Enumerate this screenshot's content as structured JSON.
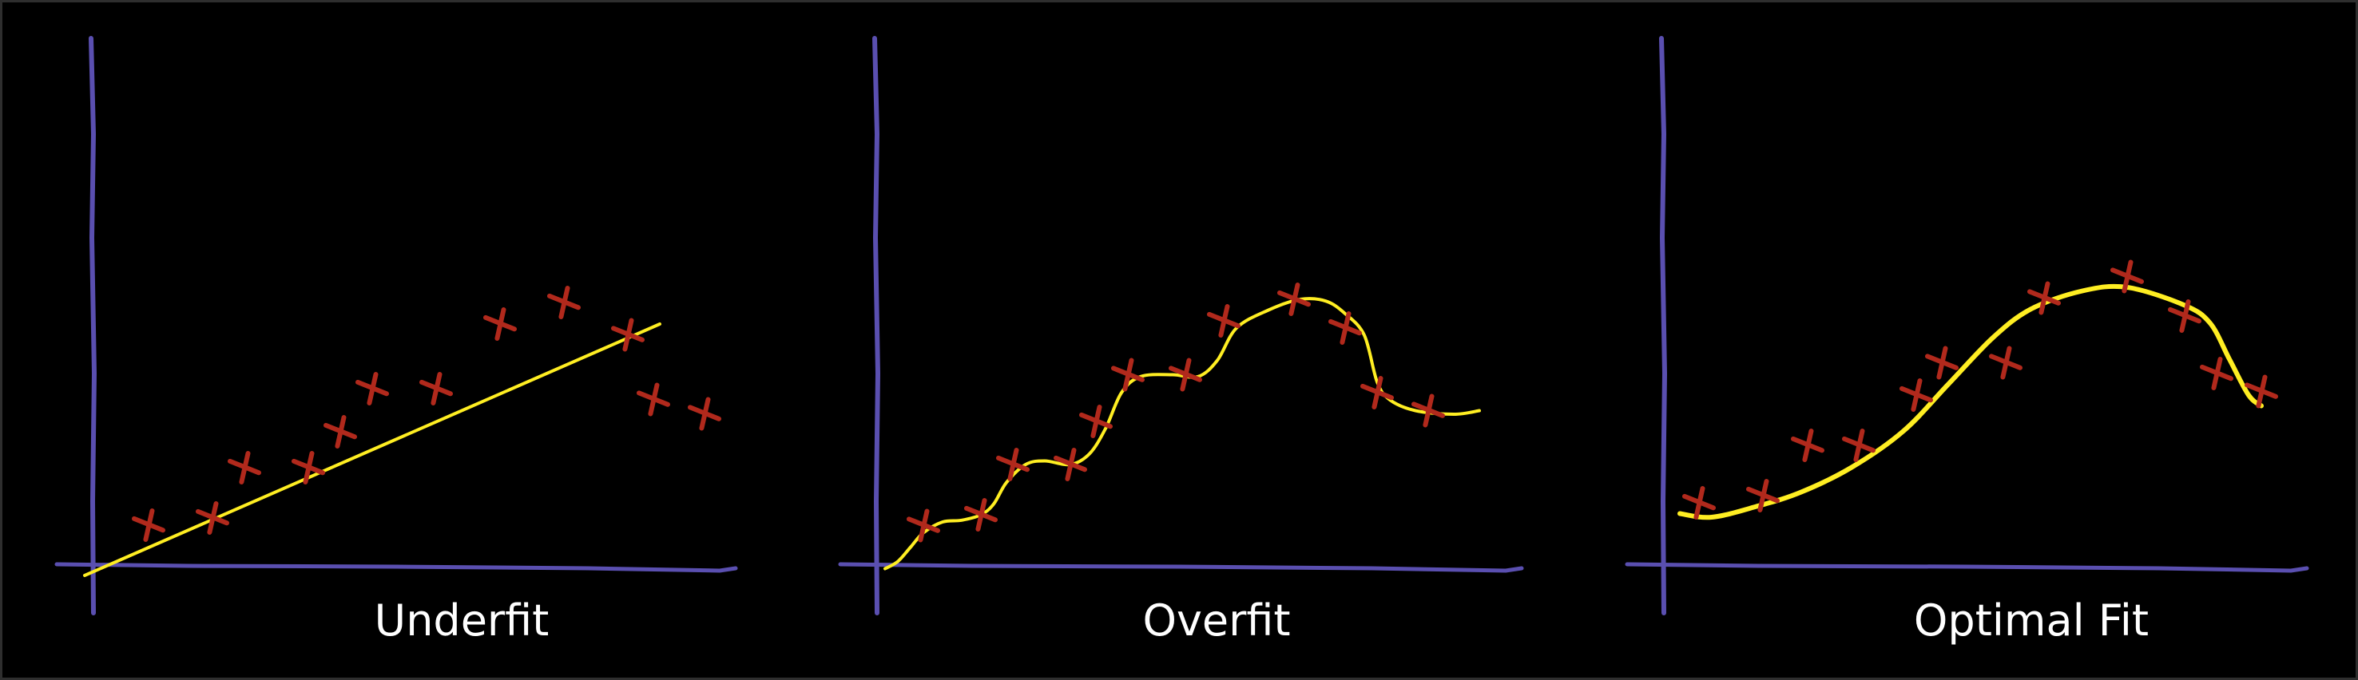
{
  "colors": {
    "background": "#000000",
    "axis": "#5a4fb0",
    "points": "#b1291c",
    "fit_curve": "#ffee22"
  },
  "panels": [
    {
      "label": "Underfit",
      "fit_style": "straight-line",
      "points": [
        [
          1.0,
          1.4
        ],
        [
          2.0,
          1.6
        ],
        [
          2.5,
          3.0
        ],
        [
          3.5,
          3.0
        ],
        [
          4.0,
          4.0
        ],
        [
          4.5,
          5.2
        ],
        [
          5.5,
          5.2
        ],
        [
          6.5,
          7.0
        ],
        [
          7.5,
          7.6
        ],
        [
          8.5,
          6.7
        ],
        [
          8.9,
          4.9
        ],
        [
          9.7,
          4.5
        ]
      ],
      "fit": [
        [
          0.0,
          0.0
        ],
        [
          9.0,
          7.0
        ]
      ]
    },
    {
      "label": "Overfit",
      "fit_style": "wiggly-interpolation",
      "points": [
        [
          0.9,
          1.3
        ],
        [
          1.8,
          1.6
        ],
        [
          2.3,
          3.0
        ],
        [
          3.2,
          3.0
        ],
        [
          3.6,
          4.2
        ],
        [
          4.1,
          5.5
        ],
        [
          5.0,
          5.5
        ],
        [
          5.6,
          7.0
        ],
        [
          6.7,
          7.6
        ],
        [
          7.5,
          6.8
        ],
        [
          8.0,
          5.0
        ],
        [
          8.8,
          4.5
        ]
      ],
      "fit": [
        [
          0.3,
          0.1
        ],
        [
          0.5,
          0.3
        ],
        [
          0.7,
          0.7
        ],
        [
          0.9,
          1.1
        ],
        [
          1.2,
          1.4
        ],
        [
          1.5,
          1.45
        ],
        [
          1.8,
          1.6
        ],
        [
          2.0,
          1.9
        ],
        [
          2.2,
          2.5
        ],
        [
          2.5,
          3.0
        ],
        [
          2.8,
          3.1
        ],
        [
          3.2,
          3.0
        ],
        [
          3.5,
          3.3
        ],
        [
          3.75,
          4.0
        ],
        [
          4.0,
          5.0
        ],
        [
          4.3,
          5.45
        ],
        [
          4.8,
          5.5
        ],
        [
          5.2,
          5.45
        ],
        [
          5.5,
          5.9
        ],
        [
          5.8,
          6.8
        ],
        [
          6.3,
          7.3
        ],
        [
          6.8,
          7.6
        ],
        [
          7.2,
          7.55
        ],
        [
          7.5,
          7.2
        ],
        [
          7.8,
          6.6
        ],
        [
          8.0,
          5.3
        ],
        [
          8.2,
          4.8
        ],
        [
          8.6,
          4.5
        ],
        [
          9.2,
          4.4
        ],
        [
          9.6,
          4.5
        ]
      ]
    },
    {
      "label": "Optimal Fit",
      "fit_style": "smooth-curve",
      "points": [
        [
          0.6,
          1.4
        ],
        [
          1.6,
          1.6
        ],
        [
          2.3,
          3.0
        ],
        [
          3.1,
          3.0
        ],
        [
          4.0,
          4.4
        ],
        [
          4.4,
          5.3
        ],
        [
          5.4,
          5.3
        ],
        [
          6.0,
          7.1
        ],
        [
          7.3,
          7.7
        ],
        [
          8.2,
          6.6
        ],
        [
          8.7,
          5.0
        ],
        [
          9.4,
          4.5
        ]
      ],
      "fit": [
        [
          0.3,
          1.1
        ],
        [
          0.8,
          1.0
        ],
        [
          1.5,
          1.3
        ],
        [
          2.2,
          1.7
        ],
        [
          3.0,
          2.4
        ],
        [
          3.8,
          3.4
        ],
        [
          4.5,
          4.7
        ],
        [
          5.2,
          6.0
        ],
        [
          5.8,
          6.8
        ],
        [
          6.6,
          7.3
        ],
        [
          7.3,
          7.4
        ],
        [
          8.2,
          6.9
        ],
        [
          8.6,
          6.4
        ],
        [
          8.9,
          5.4
        ],
        [
          9.2,
          4.4
        ],
        [
          9.4,
          4.1
        ]
      ]
    }
  ]
}
